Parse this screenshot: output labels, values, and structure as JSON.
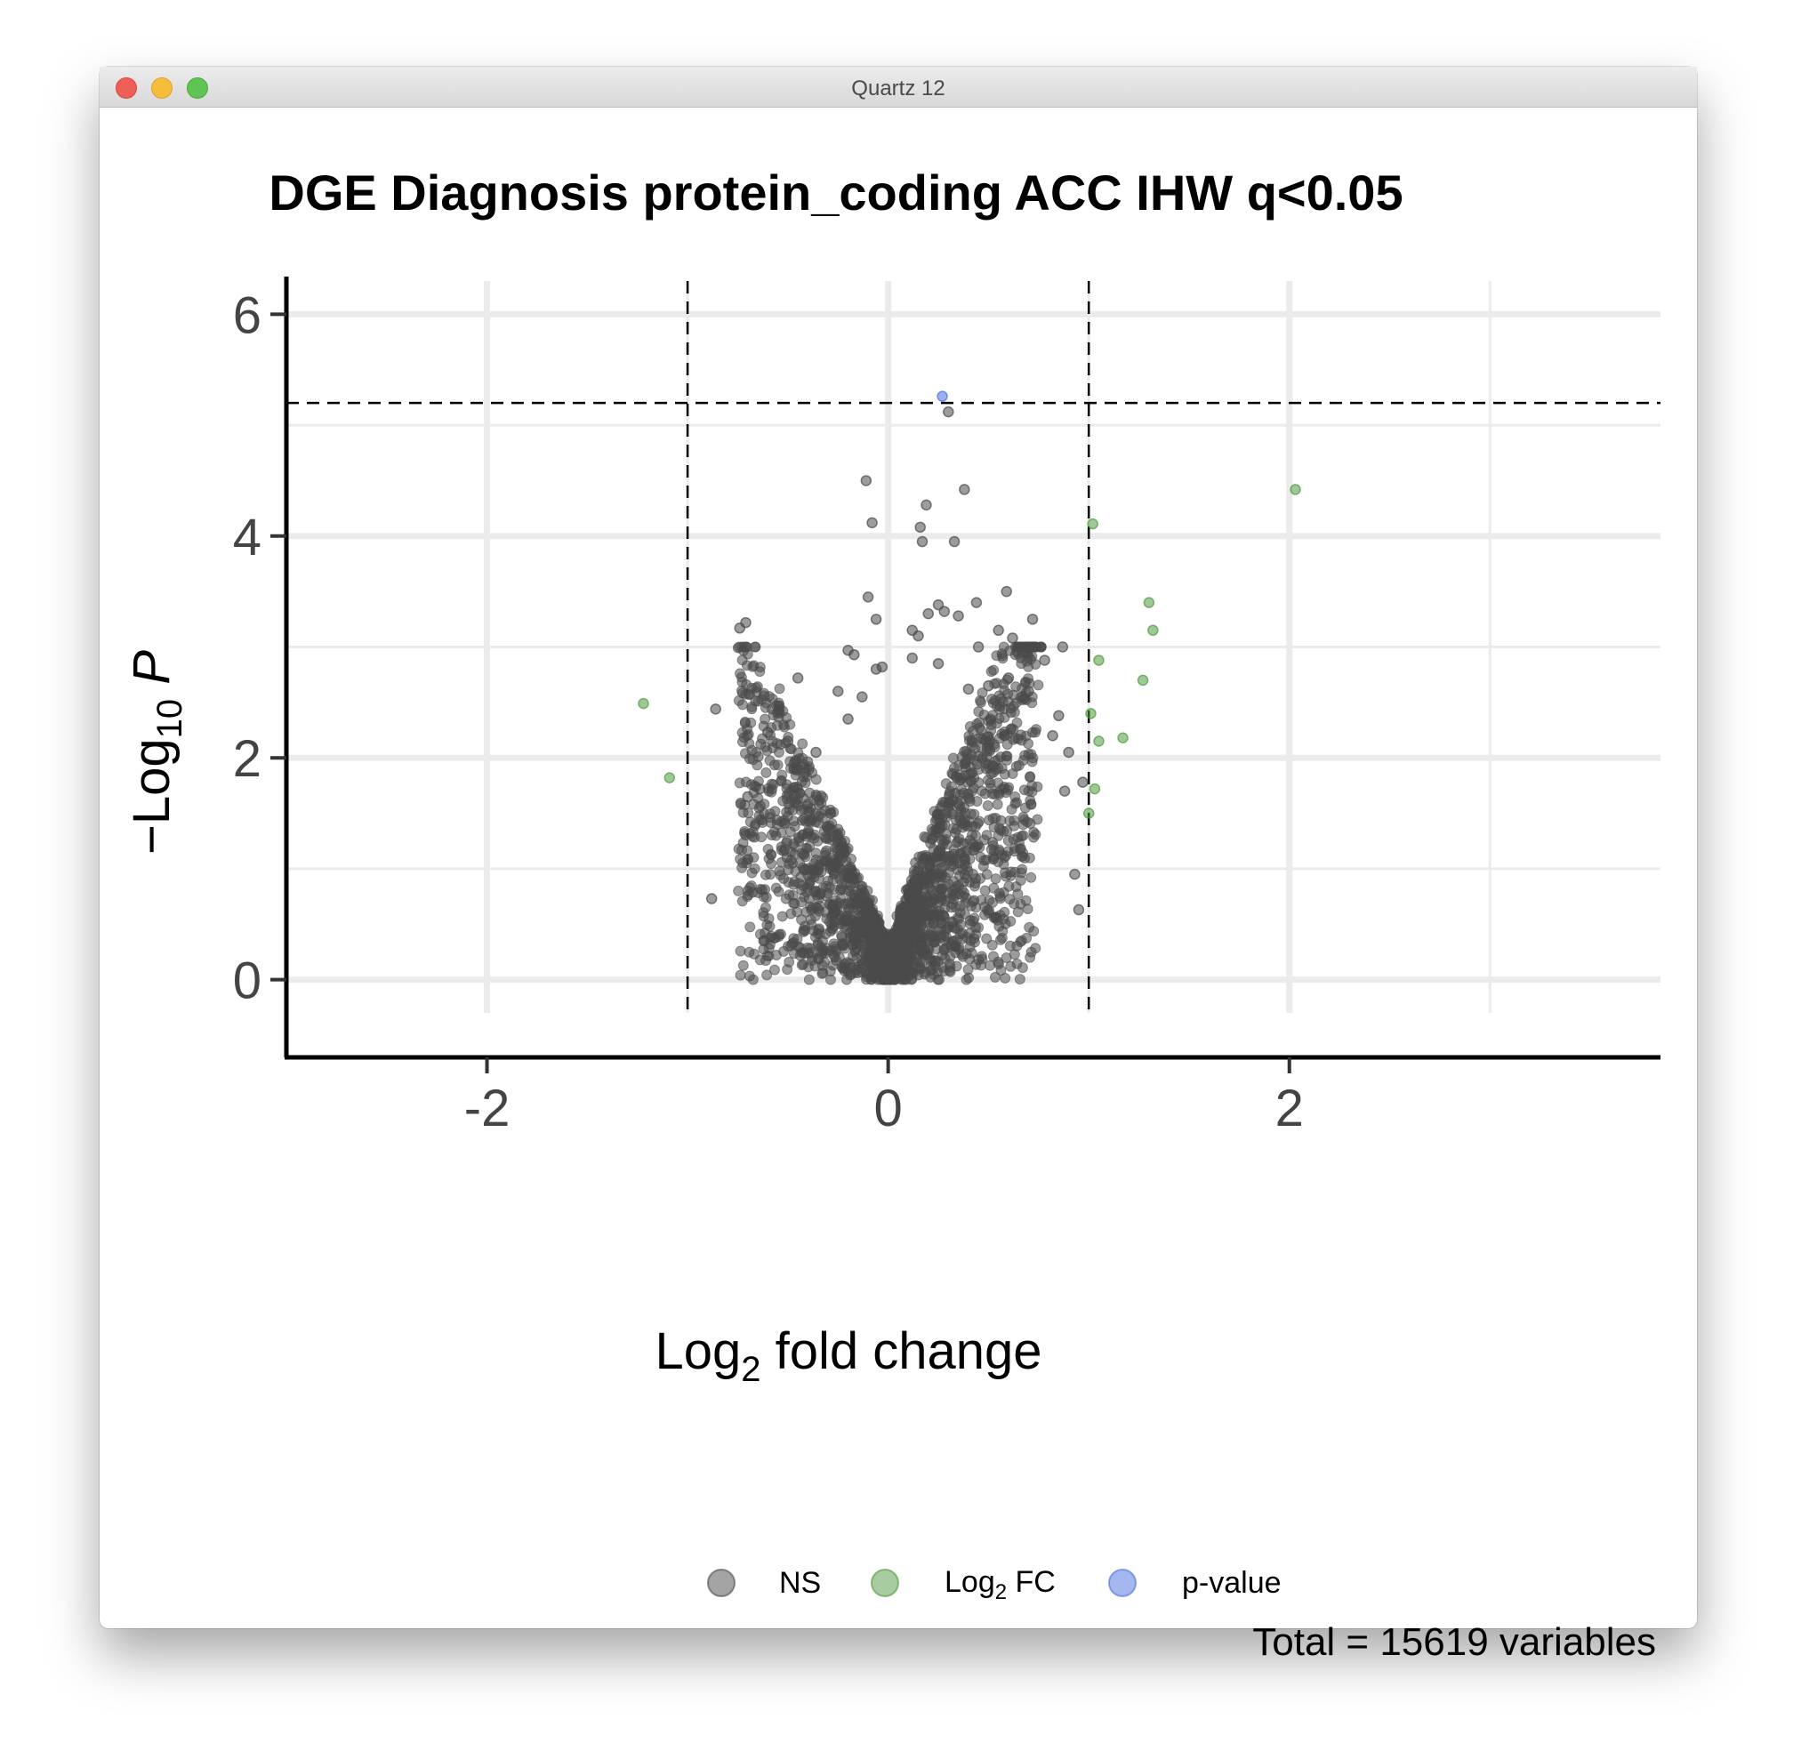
{
  "window": {
    "title": "Quartz 12",
    "buttons": [
      "close",
      "minimize",
      "maximize"
    ]
  },
  "chart_data": {
    "type": "scatter",
    "title": "DGE Diagnosis protein_coding ACC IHW q<0.05",
    "xlabel": {
      "main": "Log",
      "sub": "2",
      "rest": " fold change"
    },
    "ylabel": {
      "prefix": "−Log",
      "sub": "10",
      "italic": "P"
    },
    "xlim": [
      -3.0,
      3.85
    ],
    "ylim": [
      -0.3,
      6.3
    ],
    "x_ticks": [
      -2,
      0,
      2
    ],
    "y_ticks": [
      0,
      2,
      4,
      6
    ],
    "minor_x": [
      -3,
      -1,
      1,
      3
    ],
    "minor_y": [
      1,
      3,
      5
    ],
    "grid": true,
    "cutoffs": {
      "fc": [
        -1,
        1
      ],
      "p_log": 5.2
    },
    "legend": {
      "position": "bottom",
      "entries": [
        {
          "key": "ns",
          "label": "NS",
          "color": "#4a4a4a"
        },
        {
          "key": "fc",
          "label_main": "Log",
          "label_sub": "2",
          "label_rest": " FC",
          "color": "#4f9a3f"
        },
        {
          "key": "p",
          "label": "p-value",
          "color": "#4b6fe0"
        }
      ]
    },
    "caption": "Total = 15619 variables",
    "colors": {
      "ns": "#4a4a4a",
      "fc": "#4f9a3f",
      "p": "#4b6fe0"
    },
    "series": [
      {
        "name": "NS",
        "points": [
          [
            -0.11,
            4.5
          ],
          [
            -0.08,
            4.12
          ],
          [
            0.19,
            4.28
          ],
          [
            0.38,
            4.42
          ],
          [
            0.16,
            4.08
          ],
          [
            0.17,
            3.95
          ],
          [
            0.33,
            3.95
          ],
          [
            0.3,
            5.12
          ],
          [
            -0.1,
            3.45
          ],
          [
            -0.06,
            3.25
          ],
          [
            0.59,
            3.5
          ],
          [
            0.44,
            3.4
          ],
          [
            0.25,
            3.38
          ],
          [
            0.72,
            3.25
          ],
          [
            -0.74,
            3.17
          ],
          [
            -0.71,
            3.22
          ],
          [
            -0.2,
            2.97
          ],
          [
            -0.17,
            2.93
          ],
          [
            0.87,
            3.0
          ],
          [
            -0.45,
            2.72
          ],
          [
            -0.86,
            2.44
          ],
          [
            0.67,
            2.95
          ],
          [
            0.45,
            3.0
          ],
          [
            0.2,
            3.3
          ],
          [
            0.28,
            3.32
          ],
          [
            0.35,
            3.28
          ],
          [
            0.12,
            3.15
          ],
          [
            0.15,
            3.1
          ],
          [
            0.55,
            3.15
          ],
          [
            0.62,
            3.08
          ],
          [
            0.78,
            2.88
          ],
          [
            0.5,
            2.65
          ],
          [
            0.4,
            2.62
          ],
          [
            0.25,
            2.85
          ],
          [
            0.12,
            2.9
          ],
          [
            -0.03,
            2.82
          ],
          [
            -0.06,
            2.8
          ],
          [
            -0.13,
            2.55
          ],
          [
            -0.2,
            2.35
          ],
          [
            -0.25,
            2.6
          ],
          [
            -0.6,
            2.23
          ],
          [
            -0.5,
            2.15
          ],
          [
            -0.36,
            2.05
          ],
          [
            -0.64,
            1.72
          ],
          [
            -0.7,
            1.65
          ],
          [
            -0.88,
            0.73
          ],
          [
            -0.62,
            0.35
          ],
          [
            0.95,
            0.63
          ],
          [
            0.93,
            0.95
          ],
          [
            0.88,
            1.7
          ],
          [
            0.85,
            2.38
          ],
          [
            0.9,
            2.05
          ],
          [
            0.7,
            2.6
          ],
          [
            0.6,
            2.72
          ],
          [
            0.82,
            2.2
          ],
          [
            0.97,
            1.78
          ]
        ]
      },
      {
        "name": "Log2 FC",
        "points": [
          [
            -1.22,
            2.49
          ],
          [
            -1.09,
            1.82
          ],
          [
            2.03,
            4.42
          ],
          [
            1.02,
            4.11
          ],
          [
            1.3,
            3.4
          ],
          [
            1.32,
            3.15
          ],
          [
            1.05,
            2.88
          ],
          [
            1.27,
            2.7
          ],
          [
            1.01,
            2.4
          ],
          [
            1.05,
            2.15
          ],
          [
            1.17,
            2.18
          ],
          [
            1.03,
            1.72
          ],
          [
            1.0,
            1.5
          ]
        ]
      },
      {
        "name": "p-value",
        "points": [
          [
            0.27,
            5.26
          ]
        ]
      }
    ]
  }
}
